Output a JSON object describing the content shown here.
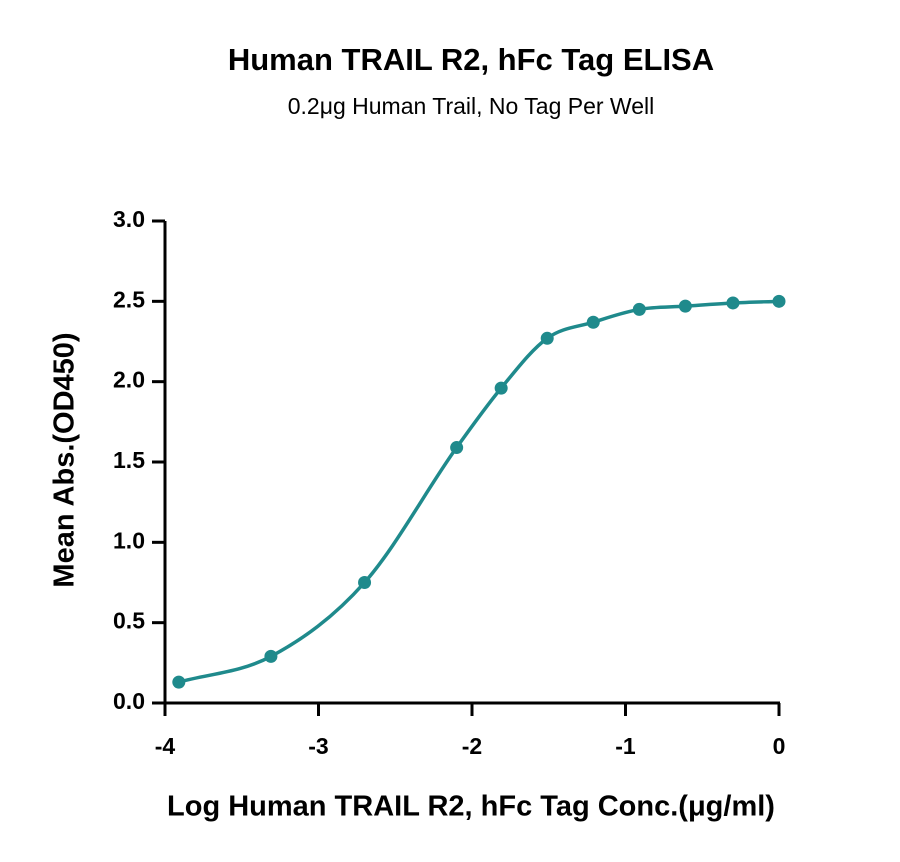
{
  "chart_data": {
    "type": "scatter",
    "title": "Human TRAIL R2, hFc Tag ELISA",
    "subtitle": "0.2μg Human Trail, No Tag Per Well",
    "x_label": "Log Human TRAIL R2, hFc Tag Conc.(μg/ml)",
    "y_label": "Mean Abs.(OD450)",
    "x": [
      -3.91,
      -3.31,
      -2.7,
      -2.1,
      -1.81,
      -1.51,
      -1.21,
      -0.91,
      -0.61,
      -0.3,
      0
    ],
    "values": [
      0.13,
      0.29,
      0.75,
      1.59,
      1.96,
      2.27,
      2.37,
      2.45,
      2.47,
      2.49,
      2.5
    ],
    "color": "#1f8a8c",
    "fit_curve": true,
    "xlim": [
      -4,
      0
    ],
    "xticks": [
      -4,
      -3,
      -2,
      -1,
      0
    ],
    "ylim": [
      0,
      3
    ],
    "yticks": [
      {
        "value": 0,
        "label": "0.0"
      },
      {
        "value": 0.5,
        "label": "0.5"
      },
      {
        "value": 1,
        "label": "1.0"
      },
      {
        "value": 1.5,
        "label": "1.5"
      },
      {
        "value": 2,
        "label": "2.0"
      },
      {
        "value": 2.5,
        "label": "2.5"
      },
      {
        "value": 3,
        "label": "3.0"
      }
    ]
  }
}
